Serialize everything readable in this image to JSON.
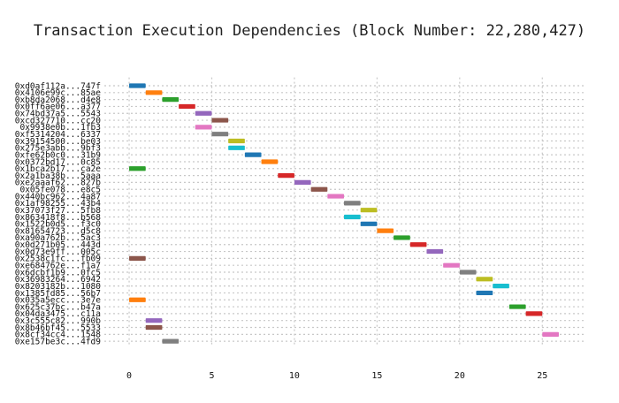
{
  "chart_data": {
    "type": "gantt",
    "title": "Transaction Execution Dependencies (Block Number: 22,280,427)",
    "xlim": [
      -1.5,
      27.5
    ],
    "xticks": [
      0,
      5,
      10,
      15,
      20,
      25
    ],
    "grid": true,
    "palette": [
      "#1f77b4",
      "#ff7f0e",
      "#2ca02c",
      "#d62728",
      "#9467bd",
      "#8c564b",
      "#e377c2",
      "#7f7f7f",
      "#bcbd22",
      "#17becf"
    ],
    "tasks": [
      {
        "label": "0xd0af112a...747f",
        "start": 0,
        "end": 1,
        "color_index": 0
      },
      {
        "label": "0x4106e99c...85ae",
        "start": 1,
        "end": 2,
        "color_index": 1
      },
      {
        "label": "0xb8da2068...d4e8",
        "start": 2,
        "end": 3,
        "color_index": 2
      },
      {
        "label": "0x0ff6ae06...a377",
        "start": 3,
        "end": 4,
        "color_index": 3
      },
      {
        "label": "0x74bd37a5...5543",
        "start": 4,
        "end": 5,
        "color_index": 4
      },
      {
        "label": "0xcd327710...cc20",
        "start": 5,
        "end": 6,
        "color_index": 5
      },
      {
        "label": "0x9938e0b...1fb3",
        "start": 4,
        "end": 5,
        "color_index": 6
      },
      {
        "label": "0xf5314204...6337",
        "start": 5,
        "end": 6,
        "color_index": 7
      },
      {
        "label": "0x39154500...be03",
        "start": 6,
        "end": 7,
        "color_index": 8
      },
      {
        "label": "0x275e3abb...9bf3",
        "start": 6,
        "end": 7,
        "color_index": 9
      },
      {
        "label": "0xfe62b0c0...31b9",
        "start": 7,
        "end": 8,
        "color_index": 0
      },
      {
        "label": "0x0372bd17...0c85",
        "start": 8,
        "end": 9,
        "color_index": 1
      },
      {
        "label": "0x1bca2b17...ca2e",
        "start": 0,
        "end": 1,
        "color_index": 2
      },
      {
        "label": "0x2a1ba38b...5aaa",
        "start": 9,
        "end": 10,
        "color_index": 3
      },
      {
        "label": "0xe2aaaf62...827b",
        "start": 10,
        "end": 11,
        "color_index": 4
      },
      {
        "label": "0x05fe078...e8c5",
        "start": 11,
        "end": 12,
        "color_index": 5
      },
      {
        "label": "0x440bc962...4a87",
        "start": 12,
        "end": 13,
        "color_index": 6
      },
      {
        "label": "0x1af98255...43b4",
        "start": 13,
        "end": 14,
        "color_index": 7
      },
      {
        "label": "0x37073f27...5fb8",
        "start": 14,
        "end": 15,
        "color_index": 8
      },
      {
        "label": "0x863418f8...b568",
        "start": 13,
        "end": 14,
        "color_index": 9
      },
      {
        "label": "0x1522b0d5...f3c0",
        "start": 14,
        "end": 15,
        "color_index": 0
      },
      {
        "label": "0x81654723...d5c8",
        "start": 15,
        "end": 16,
        "color_index": 1
      },
      {
        "label": "0xa90a762b...5ac3",
        "start": 16,
        "end": 17,
        "color_index": 2
      },
      {
        "label": "0x0d271b05...443d",
        "start": 17,
        "end": 18,
        "color_index": 3
      },
      {
        "label": "0x0d73e9ff...005c",
        "start": 18,
        "end": 19,
        "color_index": 4
      },
      {
        "label": "0x2538c1fc...fb09",
        "start": 0,
        "end": 1,
        "color_index": 5
      },
      {
        "label": "0xe684762e...f1a7",
        "start": 19,
        "end": 20,
        "color_index": 6
      },
      {
        "label": "0x6dcbf1b9...0fc5",
        "start": 20,
        "end": 21,
        "color_index": 7
      },
      {
        "label": "0x36983264...6942",
        "start": 21,
        "end": 22,
        "color_index": 8
      },
      {
        "label": "0x8203182b...1080",
        "start": 22,
        "end": 23,
        "color_index": 9
      },
      {
        "label": "0x1385fd85...56b7",
        "start": 21,
        "end": 22,
        "color_index": 0
      },
      {
        "label": "0x035a5ecc...3e7e",
        "start": 0,
        "end": 1,
        "color_index": 1
      },
      {
        "label": "0x625c37bc...b47a",
        "start": 23,
        "end": 24,
        "color_index": 2
      },
      {
        "label": "0x04da3475...c11a",
        "start": 24,
        "end": 25,
        "color_index": 3
      },
      {
        "label": "0x3c555c82...990b",
        "start": 1,
        "end": 2,
        "color_index": 4
      },
      {
        "label": "0x8b46bf45...5533",
        "start": 1,
        "end": 2,
        "color_index": 5
      },
      {
        "label": "0x8cf34cc4...1548",
        "start": 25,
        "end": 26,
        "color_index": 6
      },
      {
        "label": "0xe157be3c...4fd9",
        "start": 2,
        "end": 3,
        "color_index": 7
      }
    ]
  }
}
